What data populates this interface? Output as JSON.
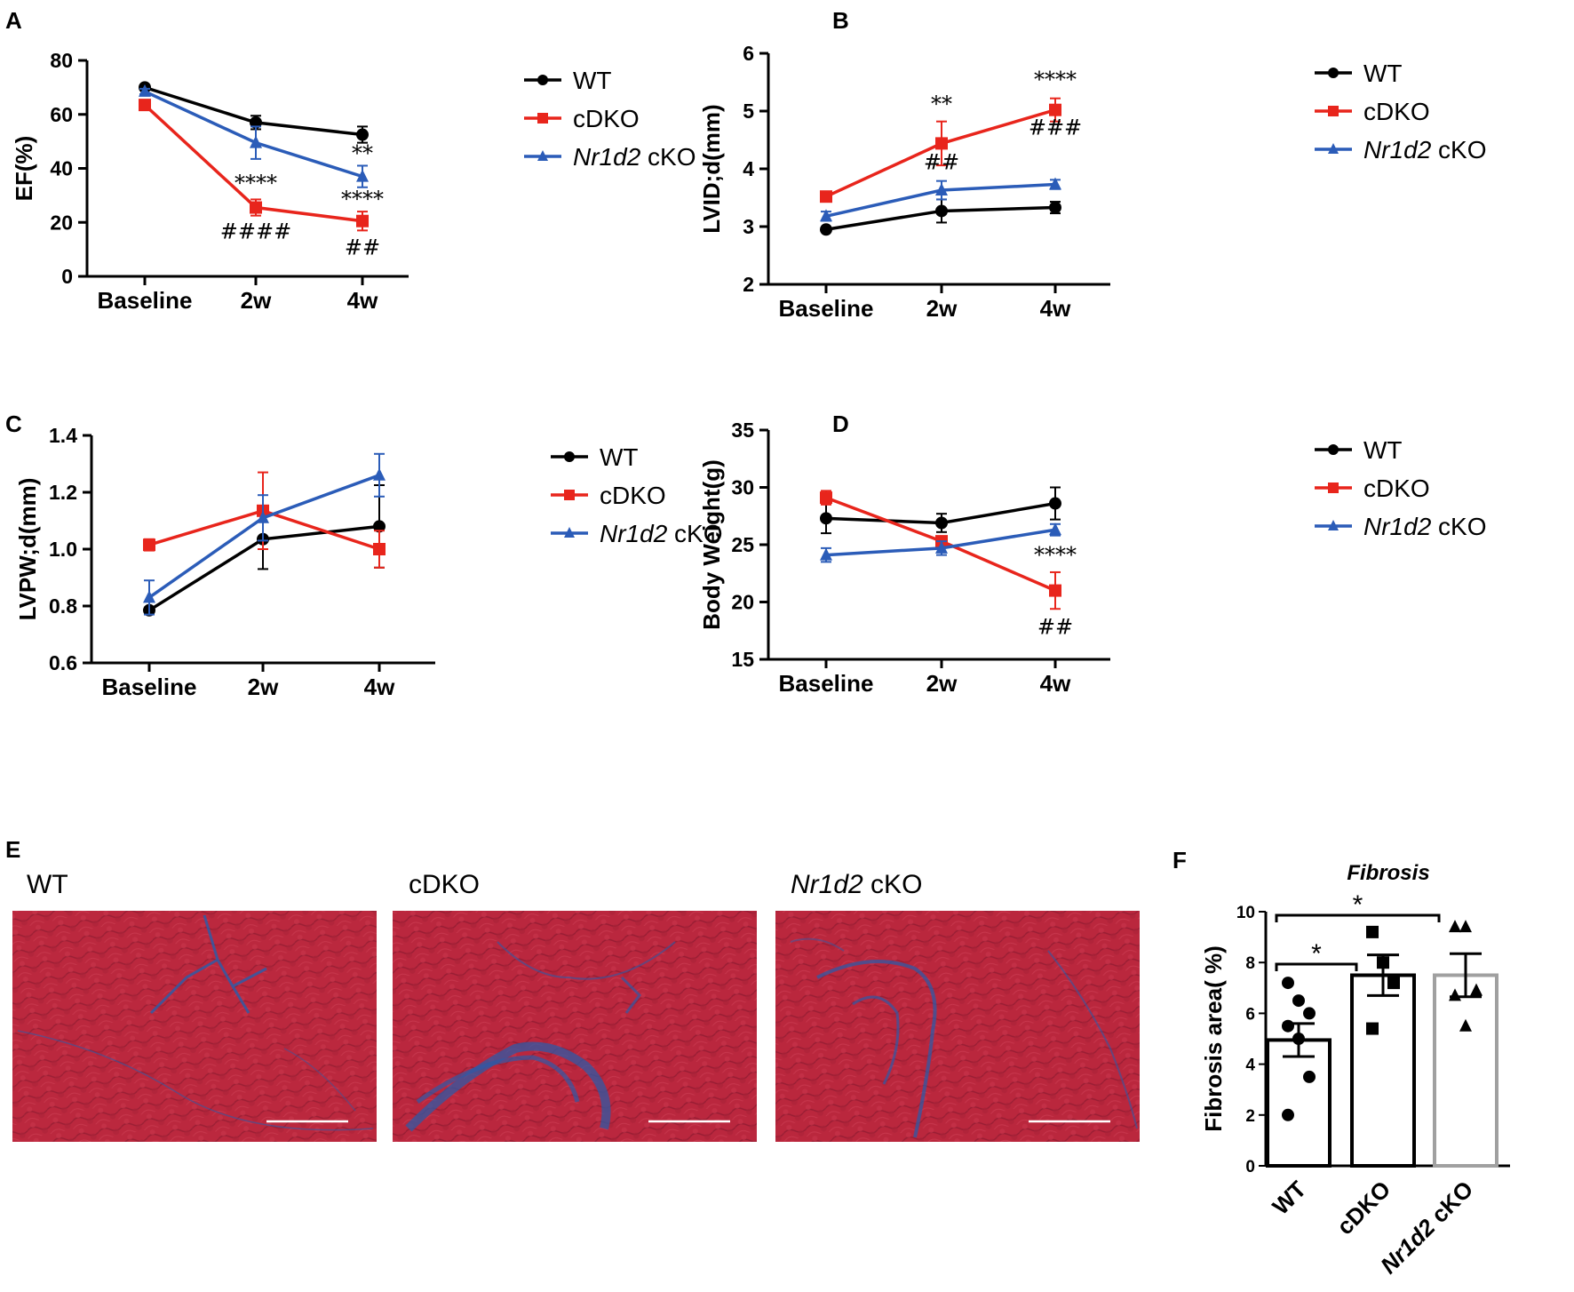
{
  "chart_data": [
    {
      "panel": "A",
      "type": "line",
      "ylabel": "EF(%)",
      "categories": [
        "Baseline",
        "2w",
        "4w"
      ],
      "ylim": [
        0,
        80
      ],
      "yticks": [
        "0",
        "20",
        "40",
        "60",
        "80"
      ],
      "series": [
        {
          "name": "WT",
          "italic": "",
          "suffix": "",
          "color": "#000000",
          "marker": "circle",
          "values": [
            70,
            57,
            52.5
          ],
          "errors": [
            0.8,
            2.5,
            3
          ]
        },
        {
          "name": "cDKO",
          "italic": "",
          "suffix": "",
          "color": "#e8251c",
          "marker": "square",
          "values": [
            63.5,
            25.5,
            20.5
          ],
          "errors": [
            0.8,
            3,
            3.5
          ]
        },
        {
          "name": "Nr1d2 cKO",
          "italic": "Nr1d2",
          "suffix": " cKO",
          "color": "#2b5cb8",
          "marker": "triangle",
          "values": [
            68.5,
            49.5,
            37
          ],
          "errors": [
            1,
            6,
            4
          ]
        }
      ],
      "annotations": [
        {
          "text": "****",
          "x": 1,
          "y": 32
        },
        {
          "text": "####",
          "x": 1,
          "y": 14
        },
        {
          "text": "**",
          "x": 2,
          "y": 43
        },
        {
          "text": "****",
          "x": 2,
          "y": 26
        },
        {
          "text": "##",
          "x": 2,
          "y": 8
        }
      ],
      "legend_labels": [
        "WT",
        "cDKO",
        "Nr1d2 cKO"
      ]
    },
    {
      "panel": "B",
      "type": "line",
      "ylabel": "LVID;d(mm)",
      "categories": [
        "Baseline",
        "2w",
        "4w"
      ],
      "ylim": [
        2,
        6
      ],
      "yticks": [
        "2",
        "3",
        "4",
        "5",
        "6"
      ],
      "series": [
        {
          "name": "WT",
          "italic": "",
          "suffix": "",
          "color": "#000000",
          "marker": "circle",
          "values": [
            2.95,
            3.27,
            3.33
          ],
          "errors": [
            0.03,
            0.2,
            0.1
          ]
        },
        {
          "name": "cDKO",
          "italic": "",
          "suffix": "",
          "color": "#e8251c",
          "marker": "square",
          "values": [
            3.52,
            4.44,
            5.02
          ],
          "errors": [
            0.04,
            0.38,
            0.2
          ]
        },
        {
          "name": "Nr1d2 cKO",
          "italic": "Nr1d2",
          "suffix": " cKO",
          "color": "#2b5cb8",
          "marker": "triangle",
          "values": [
            3.18,
            3.63,
            3.73
          ],
          "errors": [
            0.08,
            0.16,
            0.08
          ]
        }
      ],
      "annotations": [
        {
          "text": "**",
          "x": 1,
          "y": 5.0
        },
        {
          "text": "##",
          "x": 1,
          "y": 3.99
        },
        {
          "text": "****",
          "x": 2,
          "y": 5.42
        },
        {
          "text": "###",
          "x": 2,
          "y": 4.59
        }
      ],
      "legend_labels": [
        "WT",
        "cDKO",
        "Nr1d2 cKO"
      ]
    },
    {
      "panel": "C",
      "type": "line",
      "ylabel": "LVPW;d(mm)",
      "categories": [
        "Baseline",
        "2w",
        "4w"
      ],
      "ylim": [
        0.6,
        1.4
      ],
      "yticks": [
        "0.6",
        "0.8",
        "1.0",
        "1.2",
        "1.4"
      ],
      "series": [
        {
          "name": "WT",
          "italic": "",
          "suffix": "",
          "color": "#000000",
          "marker": "circle",
          "values": [
            0.785,
            1.035,
            1.08
          ],
          "errors": [
            0.01,
            0.105,
            0.145
          ]
        },
        {
          "name": "cDKO",
          "italic": "",
          "suffix": "",
          "color": "#e8251c",
          "marker": "square",
          "values": [
            1.015,
            1.135,
            1.0
          ],
          "errors": [
            0.02,
            0.135,
            0.065
          ]
        },
        {
          "name": "Nr1d2 cKO",
          "italic": "Nr1d2",
          "suffix": " cKO",
          "color": "#2b5cb8",
          "marker": "triangle",
          "values": [
            0.83,
            1.11,
            1.26
          ],
          "errors": [
            0.06,
            0.08,
            0.075
          ]
        }
      ],
      "annotations": [],
      "legend_labels": [
        "WT",
        "cDKO",
        "Nr1d2 cKO"
      ]
    },
    {
      "panel": "D",
      "type": "line",
      "ylabel": "Body Weight(g)",
      "categories": [
        "Baseline",
        "2w",
        "4w"
      ],
      "ylim": [
        15,
        35
      ],
      "yticks": [
        "15",
        "20",
        "25",
        "30",
        "35"
      ],
      "series": [
        {
          "name": "WT",
          "italic": "",
          "suffix": "",
          "color": "#000000",
          "marker": "circle",
          "values": [
            27.3,
            26.9,
            28.6
          ],
          "errors": [
            1.3,
            0.8,
            1.4
          ]
        },
        {
          "name": "cDKO",
          "italic": "",
          "suffix": "",
          "color": "#e8251c",
          "marker": "square",
          "values": [
            29.1,
            25.3,
            21.0
          ],
          "errors": [
            0.6,
            0.4,
            1.6
          ]
        },
        {
          "name": "Nr1d2 cKO",
          "italic": "Nr1d2",
          "suffix": " cKO",
          "color": "#2b5cb8",
          "marker": "triangle",
          "values": [
            24.1,
            24.7,
            26.3
          ],
          "errors": [
            0.6,
            0.6,
            0.5
          ]
        }
      ],
      "annotations": [
        {
          "text": "****",
          "x": 2,
          "y": 23.5
        },
        {
          "text": "##",
          "x": 2,
          "y": 17.2
        }
      ],
      "legend_labels": [
        "WT",
        "cDKO",
        "Nr1d2 cKO"
      ]
    },
    {
      "panel": "F",
      "type": "bar",
      "title": "Fibrosis",
      "ylabel": "Fibrosis area( %)",
      "categories": [
        "WT",
        "cDKO",
        "Nr1d2 cKO"
      ],
      "ylim": [
        0,
        10
      ],
      "yticks": [
        "0",
        "2",
        "4",
        "6",
        "8",
        "10"
      ],
      "values": [
        4.95,
        7.5,
        7.5
      ],
      "errors": [
        0.65,
        0.8,
        0.85
      ],
      "bar_colors": [
        "#000000",
        "#000000",
        "#a0a0a0"
      ],
      "points": [
        [
          7.2,
          6.5,
          6.0,
          5.5,
          5.0,
          3.5,
          2.0
        ],
        [
          9.2,
          8.0,
          7.2,
          5.4
        ],
        [
          9.4,
          9.4,
          6.9,
          6.7,
          5.5
        ]
      ],
      "markers": [
        "circle",
        "square",
        "triangle"
      ],
      "significance": [
        {
          "text": "*",
          "from": 0,
          "to": 1
        },
        {
          "text": "*",
          "from": 0,
          "to": 2
        }
      ]
    }
  ],
  "panel_letters": {
    "a": "A",
    "b": "B",
    "c": "C",
    "d": "D",
    "e": "E",
    "f": "F"
  },
  "micrographs": [
    {
      "label": "WT",
      "label_italic": "",
      "label_suffix": ""
    },
    {
      "label": "cDKO",
      "label_italic": "",
      "label_suffix": ""
    },
    {
      "label": "Nr1d2 cKO",
      "label_italic": "Nr1d2",
      "label_suffix": " cKO"
    }
  ],
  "colors": {
    "wt": "#000000",
    "cdko": "#e8251c",
    "nr1d2": "#2b5cb8",
    "tissue": "#b5263a",
    "fibrosis": "#2f5aa6"
  }
}
